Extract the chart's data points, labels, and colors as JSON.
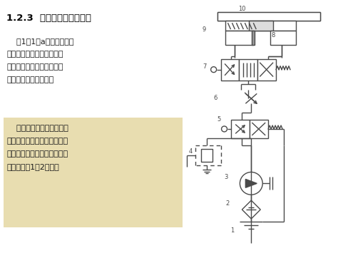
{
  "title": "1.2.3  液压系统的图形符号",
  "para1_lines": [
    "    图1．1（a）所示的液压",
    "系统图是一种半结构式的工",
    "作原理图。它直观性强，容",
    "易理解，但难于绘制。"
  ],
  "para2_lines": [
    "    在实际工作中，除少数特",
    "殊情况外，一般都采用液压与",
    "气动图形符号（参看附录）来",
    "绘制，如图1．2所示。"
  ],
  "bg_color": "#ffffff",
  "box2_color": "#e8ddb0",
  "title_color": "#000000",
  "text_color": "#1a1a1a",
  "diagram_color": "#4a4a4a",
  "lw": 1.0
}
